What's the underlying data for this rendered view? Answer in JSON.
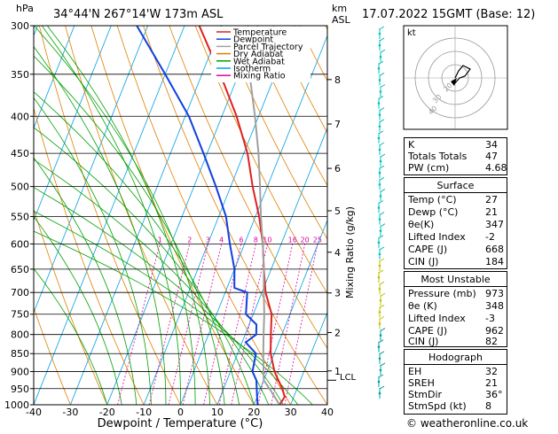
{
  "header": {
    "location": "34°44'N  267°14'W  173m  ASL",
    "datetime": "17.07.2022  15GMT  (Base: 12)"
  },
  "axis": {
    "left_unit": "hPa",
    "right_unit_top": "km",
    "right_unit_bottom": "ASL",
    "xlabel": "Dewpoint / Temperature (°C)",
    "mixing_label": "Mixing Ratio (g/kg)",
    "lcl_label": "LCL",
    "footer": "© weatheronline.co.uk"
  },
  "legend": {
    "items": [
      {
        "label": "Temperature",
        "color": "#e02020"
      },
      {
        "label": "Dewpoint",
        "color": "#1040e0"
      },
      {
        "label": "Parcel Trajectory",
        "color": "#a0a0a0"
      },
      {
        "label": "Dry Adiabat",
        "color": "#e08000"
      },
      {
        "label": "Wet Adiabat",
        "color": "#00a000"
      },
      {
        "label": "Isotherm",
        "color": "#00a0e0"
      },
      {
        "label": "Mixing Ratio",
        "color": "#e000a0"
      }
    ]
  },
  "hodograph": {
    "label": "kt",
    "ring_labels": [
      "40",
      "30",
      "20"
    ]
  },
  "indices": {
    "top": [
      {
        "label": "K",
        "value": "34"
      },
      {
        "label": "Totals Totals",
        "value": "47"
      },
      {
        "label": "PW (cm)",
        "value": "4.68"
      }
    ],
    "surface": {
      "title": "Surface",
      "rows": [
        {
          "label": "Temp (°C)",
          "value": "27"
        },
        {
          "label": "Dewp (°C)",
          "value": "21"
        },
        {
          "label": "θe(K)",
          "value": "347"
        },
        {
          "label": "Lifted Index",
          "value": "-2"
        },
        {
          "label": "CAPE (J)",
          "value": "668"
        },
        {
          "label": "CIN (J)",
          "value": "184"
        }
      ]
    },
    "most_unstable": {
      "title": "Most Unstable",
      "rows": [
        {
          "label": "Pressure (mb)",
          "value": "973"
        },
        {
          "label": "θe (K)",
          "value": "348"
        },
        {
          "label": "Lifted Index",
          "value": "-3"
        },
        {
          "label": "CAPE (J)",
          "value": "962"
        },
        {
          "label": "CIN (J)",
          "value": "82"
        }
      ]
    },
    "hodograph": {
      "title": "Hodograph",
      "rows": [
        {
          "label": "EH",
          "value": "32"
        },
        {
          "label": "SREH",
          "value": "21"
        },
        {
          "label": "StmDir",
          "value": "36°"
        },
        {
          "label": "StmSpd (kt)",
          "value": "8"
        }
      ]
    }
  },
  "chart_data": {
    "type": "line",
    "title": "",
    "xlabel": "Dewpoint / Temperature (°C)",
    "ylabel": "hPa",
    "xlim": [
      -40,
      40
    ],
    "ylim": [
      1000,
      300
    ],
    "yscale": "log",
    "skew": true,
    "x_ticks": [
      -40,
      -30,
      -20,
      -10,
      0,
      10,
      20,
      30,
      40
    ],
    "pressure_ticks": [
      300,
      350,
      400,
      450,
      500,
      550,
      600,
      650,
      700,
      750,
      800,
      850,
      900,
      950,
      1000
    ],
    "km_ticks": [
      {
        "label": "8",
        "p": 356
      },
      {
        "label": "7",
        "p": 410
      },
      {
        "label": "6",
        "p": 472
      },
      {
        "label": "5",
        "p": 540
      },
      {
        "label": "4",
        "p": 616
      },
      {
        "label": "3",
        "p": 701
      },
      {
        "label": "2",
        "p": 795
      },
      {
        "label": "1",
        "p": 898
      }
    ],
    "mixing_ratio_labels": [
      "1",
      "2",
      "3",
      "4",
      "6",
      "8",
      "10",
      "16",
      "20",
      "25"
    ],
    "mixing_ratio_values": [
      1,
      2,
      3,
      4,
      6,
      8,
      10,
      16,
      20,
      25
    ],
    "lcl_pressure": 925,
    "series": [
      {
        "name": "Temperature",
        "p": [
          1000,
          975,
          950,
          925,
          900,
          850,
          800,
          750,
          700,
          650,
          600,
          550,
          500,
          450,
          400,
          350,
          300
        ],
        "t": [
          27,
          27.5,
          26,
          24,
          22,
          19,
          17,
          15,
          11,
          8,
          5,
          1,
          -4,
          -9,
          -16,
          -25,
          -36
        ]
      },
      {
        "name": "Dewpoint",
        "p": [
          1000,
          975,
          950,
          925,
          900,
          850,
          820,
          800,
          775,
          750,
          700,
          690,
          650,
          600,
          550,
          500,
          450,
          400,
          350,
          300
        ],
        "t": [
          21,
          20,
          19,
          18,
          16,
          15,
          11,
          13,
          12,
          8,
          6,
          2,
          0,
          -4,
          -8,
          -14,
          -21,
          -29,
          -40,
          -53
        ]
      },
      {
        "name": "Parcel Trajectory",
        "p": [
          1000,
          950,
          925,
          900,
          850,
          800,
          750,
          700,
          650,
          600,
          550,
          500,
          450,
          400,
          350
        ],
        "t": [
          27,
          22.5,
          20,
          19,
          17,
          15,
          13,
          10.5,
          8,
          5,
          1.5,
          -2,
          -6,
          -11,
          -17
        ]
      }
    ]
  }
}
